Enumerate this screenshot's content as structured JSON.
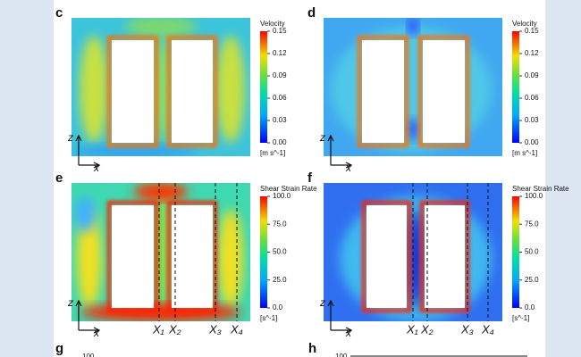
{
  "panels": [
    {
      "label": "c",
      "axis_z": "z",
      "axis_x": "x",
      "colorbar": {
        "title": "Velocity",
        "ticks": [
          "0.15",
          "0.12",
          "0.09",
          "0.06",
          "0.03",
          "0.00"
        ],
        "unit": "[m s^-1]"
      }
    },
    {
      "label": "d",
      "axis_z": "z",
      "axis_x": "x",
      "colorbar": {
        "title": "Velocity",
        "ticks": [
          "0.15",
          "0.12",
          "0.09",
          "0.06",
          "0.03",
          "0.00"
        ],
        "unit": "[m s^-1]"
      }
    },
    {
      "label": "e",
      "axis_z": "z",
      "axis_x": "x",
      "colorbar": {
        "title": "Shear Strain Rate",
        "ticks": [
          "100.0",
          "75.0",
          "50.0",
          "25.0",
          "0.0"
        ],
        "unit": "[s^-1]"
      },
      "markers": [
        "X₁",
        "X₂",
        "X₃",
        "X₄"
      ]
    },
    {
      "label": "f",
      "axis_z": "z",
      "axis_x": "x",
      "colorbar": {
        "title": "Shear Strain Rate",
        "ticks": [
          "100.0",
          "75.0",
          "50.0",
          "25.0",
          "0.0"
        ],
        "unit": "[s^-1]"
      },
      "markers": [
        "X₁",
        "X₂",
        "X₃",
        "X₄"
      ]
    }
  ],
  "bottom_panels": [
    {
      "label": "g",
      "top_tick": "100"
    },
    {
      "label": "h",
      "top_tick": "100"
    }
  ]
}
